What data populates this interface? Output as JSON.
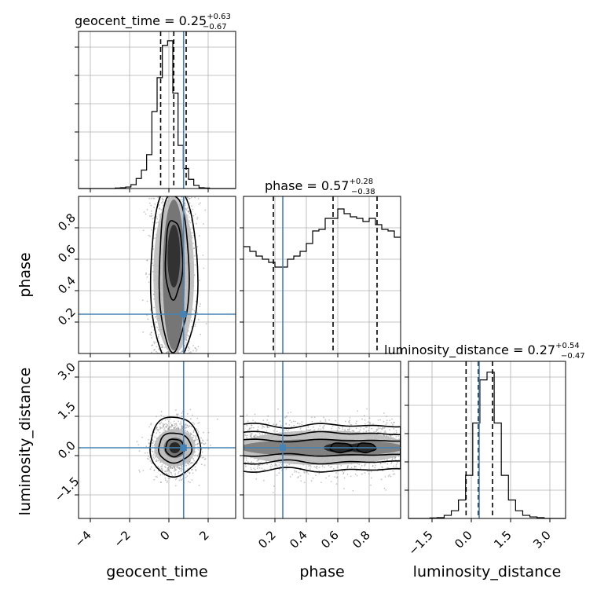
{
  "chart_data": {
    "type": "corner",
    "parameters": [
      "geocent_time",
      "phase",
      "luminosity_distance"
    ],
    "axis_labels": {
      "x": [
        "geocent_time",
        "phase",
        "luminosity_distance"
      ],
      "y_phase": "phase",
      "y_luminosity_distance": "luminosity_distance"
    },
    "titles": [
      {
        "param": "geocent_time",
        "text": "geocent_time = 0.25",
        "plus": "+0.63",
        "minus": "−0.67"
      },
      {
        "param": "phase",
        "text": "phase = 0.57",
        "plus": "+0.28",
        "minus": "−0.38"
      },
      {
        "param": "luminosity_distance",
        "text": "luminosity_distance = 0.27",
        "plus": "+0.54",
        "minus": "−0.47"
      }
    ],
    "ranges": {
      "geocent_time": [
        -4.6,
        3.4
      ],
      "phase": [
        0.0,
        1.0
      ],
      "luminosity_distance": [
        -2.4,
        3.6
      ]
    },
    "ticks": {
      "geocent_time": [
        -4,
        -2,
        0,
        2
      ],
      "phase": [
        0.2,
        0.4,
        0.6,
        0.8
      ],
      "luminosity_distance": [
        -1.5,
        0.0,
        1.5,
        3.0
      ]
    },
    "tick_labels": {
      "geocent_time": [
        "−4",
        "−2",
        "0",
        "2"
      ],
      "phase": [
        "0.2",
        "0.4",
        "0.6",
        "0.8"
      ],
      "luminosity_distance": [
        "−1.5",
        "0.0",
        "1.5",
        "3.0"
      ]
    },
    "quantiles": {
      "geocent_time": [
        -0.42,
        0.25,
        0.88
      ],
      "phase": [
        0.19,
        0.57,
        0.85
      ],
      "luminosity_distance": [
        -0.2,
        0.27,
        0.81
      ]
    },
    "truths": {
      "geocent_time": 0.75,
      "phase": 0.25,
      "luminosity_distance": 0.3
    },
    "hist": {
      "geocent_time": [
        0.0,
        0.0,
        0.0,
        0.0,
        0.0,
        0.0,
        0.0,
        0.003,
        0.005,
        0.01,
        0.025,
        0.065,
        0.12,
        0.22,
        0.5,
        0.72,
        0.93,
        0.96,
        0.62,
        0.28,
        0.13,
        0.06,
        0.02,
        0.005,
        0.003,
        0.0,
        0.0,
        0.0,
        0.0,
        0.0
      ],
      "phase": [
        0.68,
        0.65,
        0.62,
        0.6,
        0.58,
        0.55,
        0.55,
        0.6,
        0.62,
        0.65,
        0.7,
        0.78,
        0.79,
        0.86,
        0.86,
        0.92,
        0.89,
        0.87,
        0.86,
        0.84,
        0.86,
        0.82,
        0.79,
        0.78,
        0.74
      ],
      "luminosity_distance": [
        0.0,
        0.0,
        0.0,
        0.003,
        0.005,
        0.02,
        0.05,
        0.12,
        0.28,
        0.62,
        0.9,
        0.95,
        0.62,
        0.28,
        0.12,
        0.05,
        0.02,
        0.01,
        0.005,
        0.0,
        0.0,
        0.0
      ]
    },
    "grid": true,
    "colors": {
      "truth": "#4682b4",
      "hist": "#000000",
      "scatter": "#7f7f7f",
      "grid": "#b0b0b0"
    }
  }
}
